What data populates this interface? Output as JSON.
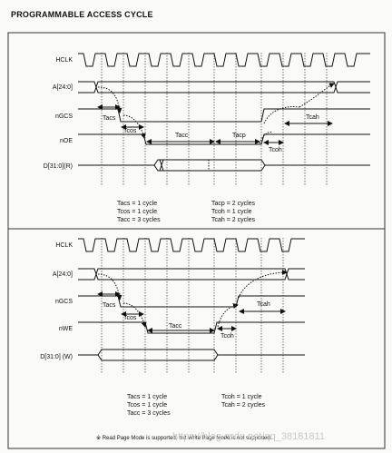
{
  "title": "PROGRAMMABLE ACCESS CYCLE",
  "read_cycle": {
    "signals": [
      "HCLK",
      "A[24:0]",
      "nGCS",
      "nOE",
      "D[31:0](R)"
    ],
    "timing_labels": {
      "tacs": "Tacs",
      "tcos": "Tcos",
      "tacc": "Tacc",
      "tacp": "Tacp",
      "tcoh": "Tcoh",
      "tcah": "Tcah"
    },
    "params_left": [
      "Tacs = 1 cycle",
      "Tcos = 1 cycle",
      "Tacc = 3 cycles"
    ],
    "params_right": [
      "Tacp = 2 cycles",
      "Tcoh = 1 cycle",
      "Tcah = 2 cycles"
    ]
  },
  "write_cycle": {
    "signals": [
      "HCLK",
      "A[24:0]",
      "nGCS",
      "nWE",
      "D[31:0] (W)"
    ],
    "timing_labels": {
      "tacs": "Tacs",
      "tcos": "Tcos",
      "tacc": "Tacc",
      "tcoh": "Tcoh",
      "tcah": "Tcah"
    },
    "params_left": [
      "Tacs = 1 cycle",
      "Tcos = 1 cycle",
      "Tacc = 3 cycles"
    ],
    "params_right": [
      "Tcoh = 1 cycle",
      "Tcah = 2 cycles"
    ],
    "note": "※ Read Page Mode is supported, but Write Page Mode is not supported."
  },
  "watermark": "https://blog.csdn.net/qq_38181811"
}
